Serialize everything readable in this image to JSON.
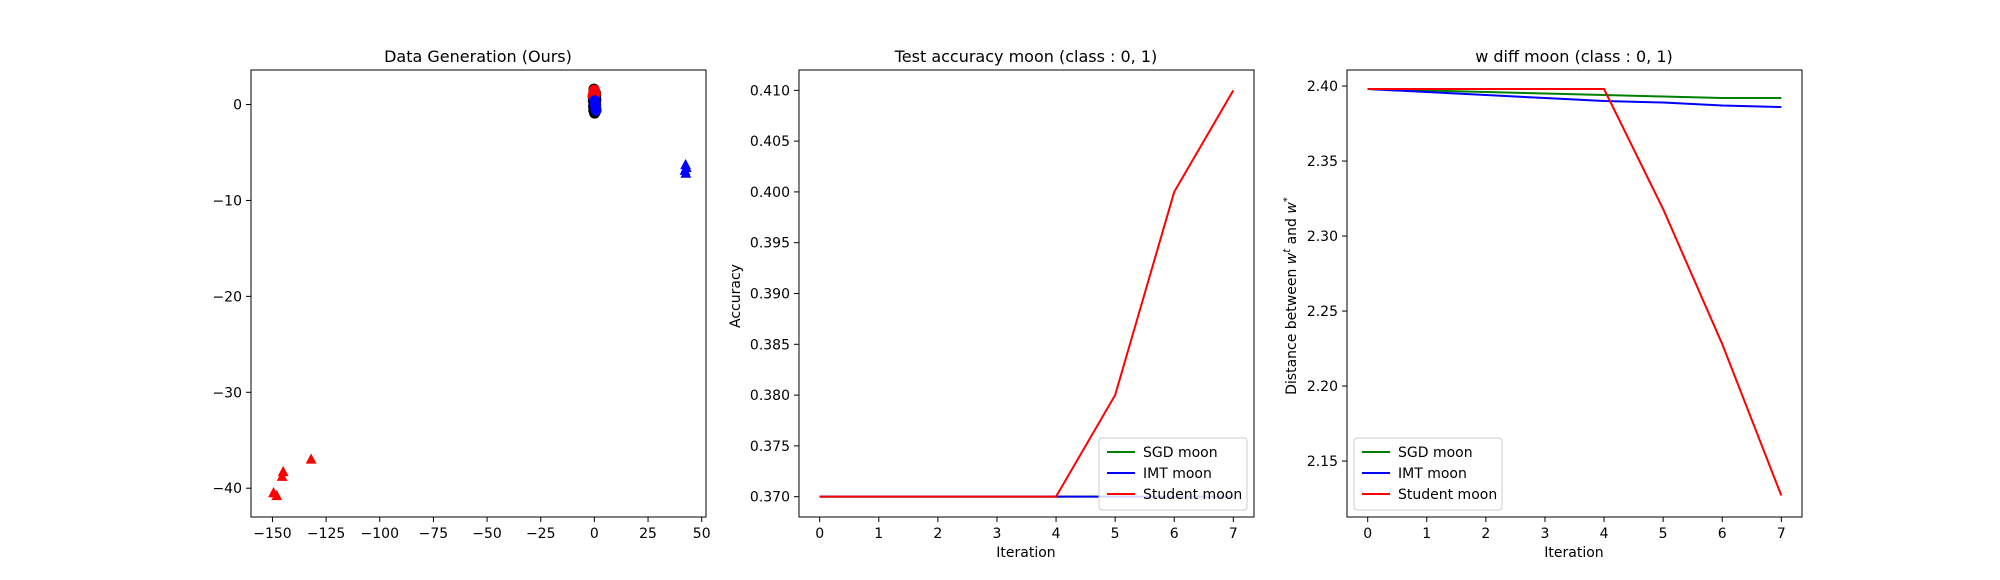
{
  "chart_data": [
    {
      "type": "scatter",
      "title": "Data Generation (Ours)",
      "xlabel": "",
      "ylabel": "",
      "xlim": [
        -160,
        52
      ],
      "ylim": [
        -43,
        3.6
      ],
      "xticks": [
        -150,
        -125,
        -100,
        -75,
        -50,
        -25,
        0,
        25,
        50
      ],
      "xtick_labels": [
        "−150",
        "−125",
        "−100",
        "−75",
        "−50",
        "−25",
        "0",
        "25",
        "50"
      ],
      "yticks": [
        0,
        -10,
        -20,
        -30,
        -40
      ],
      "ytick_labels": [
        "0",
        "−10",
        "−20",
        "−30",
        "−40"
      ],
      "grid": false,
      "series": [
        {
          "color": "#000000",
          "marker": "circle",
          "points": [
            [
              -0.4,
              1.0
            ],
            [
              0.3,
              0.6
            ],
            [
              -0.1,
              0.1
            ],
            [
              0.5,
              -0.3
            ],
            [
              -0.3,
              -0.6
            ],
            [
              0.2,
              1.3
            ],
            [
              0.6,
              0.9
            ],
            [
              -0.5,
              0.4
            ],
            [
              0.1,
              -0.9
            ],
            [
              0.4,
              0.2
            ],
            [
              -0.2,
              1.6
            ],
            [
              0.7,
              0.5
            ],
            [
              0.0,
              -0.4
            ],
            [
              -0.6,
              0.8
            ],
            [
              0.3,
              -0.8
            ],
            [
              0.5,
              1.2
            ],
            [
              -0.1,
              0.7
            ],
            [
              0.2,
              -0.1
            ],
            [
              0.6,
              0.0
            ],
            [
              -0.4,
              -0.2
            ]
          ]
        },
        {
          "color": "#ff0000",
          "marker": "circle",
          "points": [
            [
              -0.3,
              1.3
            ],
            [
              0.0,
              1.5
            ],
            [
              -0.6,
              0.9
            ],
            [
              0.4,
              1.1
            ]
          ]
        },
        {
          "color": "#0000ff",
          "marker": "circle",
          "points": [
            [
              0.4,
              0.1
            ],
            [
              0.6,
              -0.3
            ],
            [
              0.2,
              0.4
            ],
            [
              0.8,
              -0.6
            ]
          ]
        },
        {
          "color": "#0000ff",
          "marker": "triangle",
          "points": [
            [
              42.5,
              -6.3
            ],
            [
              42.2,
              -6.9
            ],
            [
              42.6,
              -7.2
            ],
            [
              42.8,
              -6.6
            ]
          ]
        },
        {
          "color": "#ff0000",
          "marker": "triangle",
          "points": [
            [
              -149.5,
              -40.5
            ],
            [
              -148.0,
              -40.8
            ],
            [
              -145.0,
              -38.3
            ],
            [
              -145.5,
              -38.8
            ],
            [
              -132.0,
              -37.0
            ]
          ]
        }
      ]
    },
    {
      "type": "line",
      "title": "Test accuracy moon (class : 0, 1)",
      "xlabel": "Iteration",
      "ylabel": "Accuracy",
      "xlim": [
        -0.35,
        7.35
      ],
      "ylim": [
        0.368,
        0.412
      ],
      "xticks": [
        0,
        1,
        2,
        3,
        4,
        5,
        6,
        7
      ],
      "xtick_labels": [
        "0",
        "1",
        "2",
        "3",
        "4",
        "5",
        "6",
        "7"
      ],
      "yticks": [
        0.37,
        0.375,
        0.38,
        0.385,
        0.39,
        0.395,
        0.4,
        0.405,
        0.41
      ],
      "ytick_labels": [
        "0.370",
        "0.375",
        "0.380",
        "0.385",
        "0.390",
        "0.395",
        "0.400",
        "0.405",
        "0.410"
      ],
      "grid": false,
      "legend": "lower-right",
      "x": [
        0,
        1,
        2,
        3,
        4,
        5,
        6,
        7
      ],
      "series": [
        {
          "name": "SGD moon",
          "color": "#008000",
          "values": [
            0.37,
            0.37,
            0.37,
            0.37,
            0.37,
            0.37,
            0.37,
            0.37
          ]
        },
        {
          "name": "IMT moon",
          "color": "#0000ff",
          "values": [
            0.37,
            0.37,
            0.37,
            0.37,
            0.37,
            0.37,
            0.37,
            0.37
          ]
        },
        {
          "name": "Student moon",
          "color": "#ff0000",
          "values": [
            0.37,
            0.37,
            0.37,
            0.37,
            0.37,
            0.38,
            0.4,
            0.41
          ]
        }
      ]
    },
    {
      "type": "line",
      "title": "w diff moon (class : 0, 1)",
      "xlabel": "Iteration",
      "ylabel": "Distance between w^t and w^*",
      "ylabel_parts": [
        "Distance between ",
        "w",
        "t",
        " and ",
        "w",
        "*"
      ],
      "xlim": [
        -0.35,
        7.35
      ],
      "ylim": [
        2.1127,
        2.4107
      ],
      "xticks": [
        0,
        1,
        2,
        3,
        4,
        5,
        6,
        7
      ],
      "xtick_labels": [
        "0",
        "1",
        "2",
        "3",
        "4",
        "5",
        "6",
        "7"
      ],
      "yticks": [
        2.15,
        2.2,
        2.25,
        2.3,
        2.35,
        2.4
      ],
      "ytick_labels": [
        "2.15",
        "2.20",
        "2.25",
        "2.30",
        "2.35",
        "2.40"
      ],
      "grid": false,
      "legend": "lower-left",
      "x": [
        0,
        1,
        2,
        3,
        4,
        5,
        6,
        7
      ],
      "series": [
        {
          "name": "SGD moon",
          "color": "#008000",
          "values": [
            2.398,
            2.397,
            2.396,
            2.395,
            2.394,
            2.393,
            2.392,
            2.392
          ]
        },
        {
          "name": "IMT moon",
          "color": "#0000ff",
          "values": [
            2.398,
            2.396,
            2.394,
            2.392,
            2.39,
            2.389,
            2.387,
            2.386
          ]
        },
        {
          "name": "Student moon",
          "color": "#ff0000",
          "values": [
            2.398,
            2.398,
            2.398,
            2.398,
            2.398,
            2.318,
            2.228,
            2.127
          ]
        }
      ]
    }
  ]
}
